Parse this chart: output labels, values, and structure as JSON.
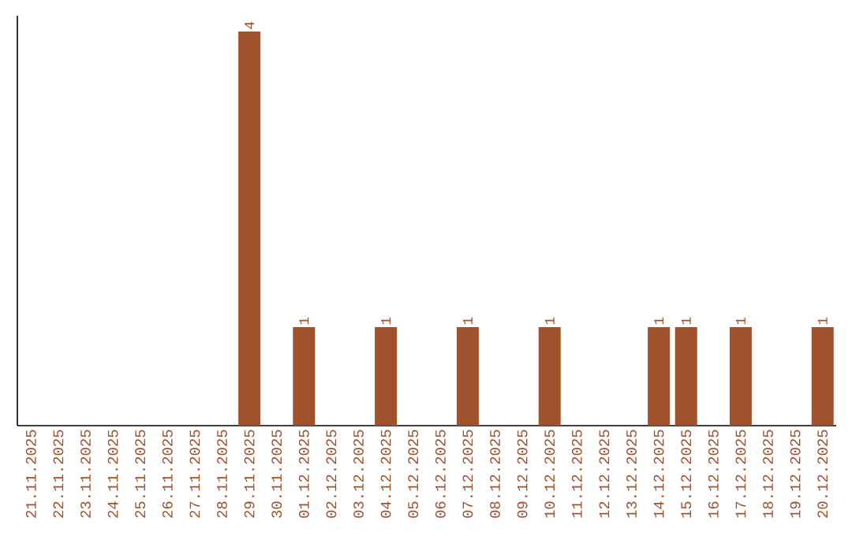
{
  "chart_data": {
    "type": "bar",
    "categories": [
      "21.11.2025",
      "22.11.2025",
      "23.11.2025",
      "24.11.2025",
      "25.11.2025",
      "26.11.2025",
      "27.11.2025",
      "28.11.2025",
      "29.11.2025",
      "30.11.2025",
      "01.12.2025",
      "02.12.2025",
      "03.12.2025",
      "04.12.2025",
      "05.12.2025",
      "06.12.2025",
      "07.12.2025",
      "08.12.2025",
      "09.12.2025",
      "10.12.2025",
      "11.12.2025",
      "12.12.2025",
      "13.12.2025",
      "14.12.2025",
      "15.12.2025",
      "16.12.2025",
      "17.12.2025",
      "18.12.2025",
      "19.12.2025",
      "20.12.2025"
    ],
    "values": [
      0,
      0,
      0,
      0,
      0,
      0,
      0,
      0,
      4,
      0,
      1,
      0,
      0,
      1,
      0,
      0,
      1,
      0,
      0,
      1,
      0,
      0,
      0,
      1,
      1,
      0,
      1,
      0,
      0,
      1
    ],
    "value_labels": [
      null,
      null,
      null,
      null,
      null,
      null,
      null,
      null,
      "4",
      null,
      "1",
      null,
      null,
      "1",
      null,
      null,
      "1",
      null,
      null,
      "1",
      null,
      null,
      null,
      "1",
      "1",
      null,
      "1",
      null,
      null,
      "1"
    ],
    "color": "#a0522d",
    "tick_labels": "x"
  }
}
